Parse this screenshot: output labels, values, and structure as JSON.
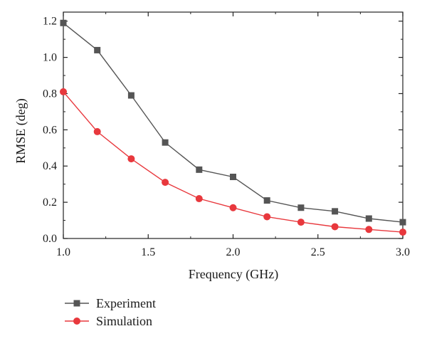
{
  "chart_data": {
    "type": "line",
    "title": "",
    "xlabel": "Frequency (GHz)",
    "ylabel": "RMSE (deg)",
    "xlim": [
      1.0,
      3.0
    ],
    "ylim": [
      0.0,
      1.25
    ],
    "xticks": [
      1.0,
      1.5,
      2.0,
      2.5,
      3.0
    ],
    "xtick_labels": [
      "1.0",
      "1.5",
      "2.0",
      "2.5",
      "3.0"
    ],
    "yticks": [
      0.0,
      0.2,
      0.4,
      0.6,
      0.8,
      1.0,
      1.2
    ],
    "ytick_labels": [
      "0.0",
      "0.2",
      "0.4",
      "0.6",
      "0.8",
      "1.0",
      "1.2"
    ],
    "grid": false,
    "legend_position": "bottom-left below plot",
    "series": [
      {
        "name": "Experiment",
        "marker": "square",
        "color": "#555555",
        "x": [
          1.0,
          1.2,
          1.4,
          1.6,
          1.8,
          2.0,
          2.2,
          2.4,
          2.6,
          2.8,
          3.0
        ],
        "values": [
          1.19,
          1.04,
          0.79,
          0.53,
          0.38,
          0.34,
          0.21,
          0.17,
          0.15,
          0.11,
          0.09
        ]
      },
      {
        "name": "Simulation",
        "marker": "circle",
        "color": "#e8383d",
        "x": [
          1.0,
          1.2,
          1.4,
          1.6,
          1.8,
          2.0,
          2.2,
          2.4,
          2.6,
          2.8,
          3.0
        ],
        "values": [
          0.81,
          0.59,
          0.44,
          0.31,
          0.22,
          0.17,
          0.12,
          0.09,
          0.065,
          0.05,
          0.035
        ]
      }
    ]
  }
}
